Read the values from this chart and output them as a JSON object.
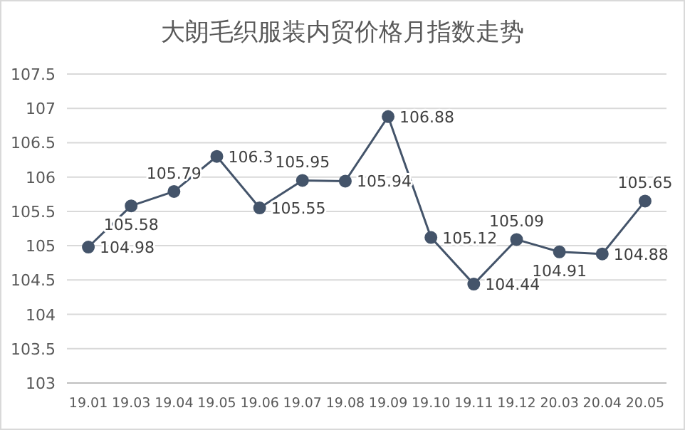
{
  "chart_data": {
    "type": "line",
    "title": "大朗毛织服装内贸价格月指数走势",
    "categories": [
      "19.01",
      "19.03",
      "19.04",
      "19.05",
      "19.06",
      "19.07",
      "19.08",
      "19.09",
      "19.10",
      "19.11",
      "19.12",
      "20.03",
      "20.04",
      "20.05"
    ],
    "values": [
      104.98,
      105.58,
      105.79,
      106.3,
      105.55,
      105.95,
      105.94,
      106.88,
      105.12,
      104.44,
      105.09,
      104.91,
      104.88,
      105.65
    ],
    "color": "#44546a",
    "marker": "circle",
    "line_style": "solid",
    "data_labels": true,
    "grid": "y",
    "ylim": [
      103,
      107.5
    ],
    "yticks": [
      103,
      103.5,
      104,
      104.5,
      105,
      105.5,
      106,
      106.5,
      107,
      107.5
    ]
  }
}
